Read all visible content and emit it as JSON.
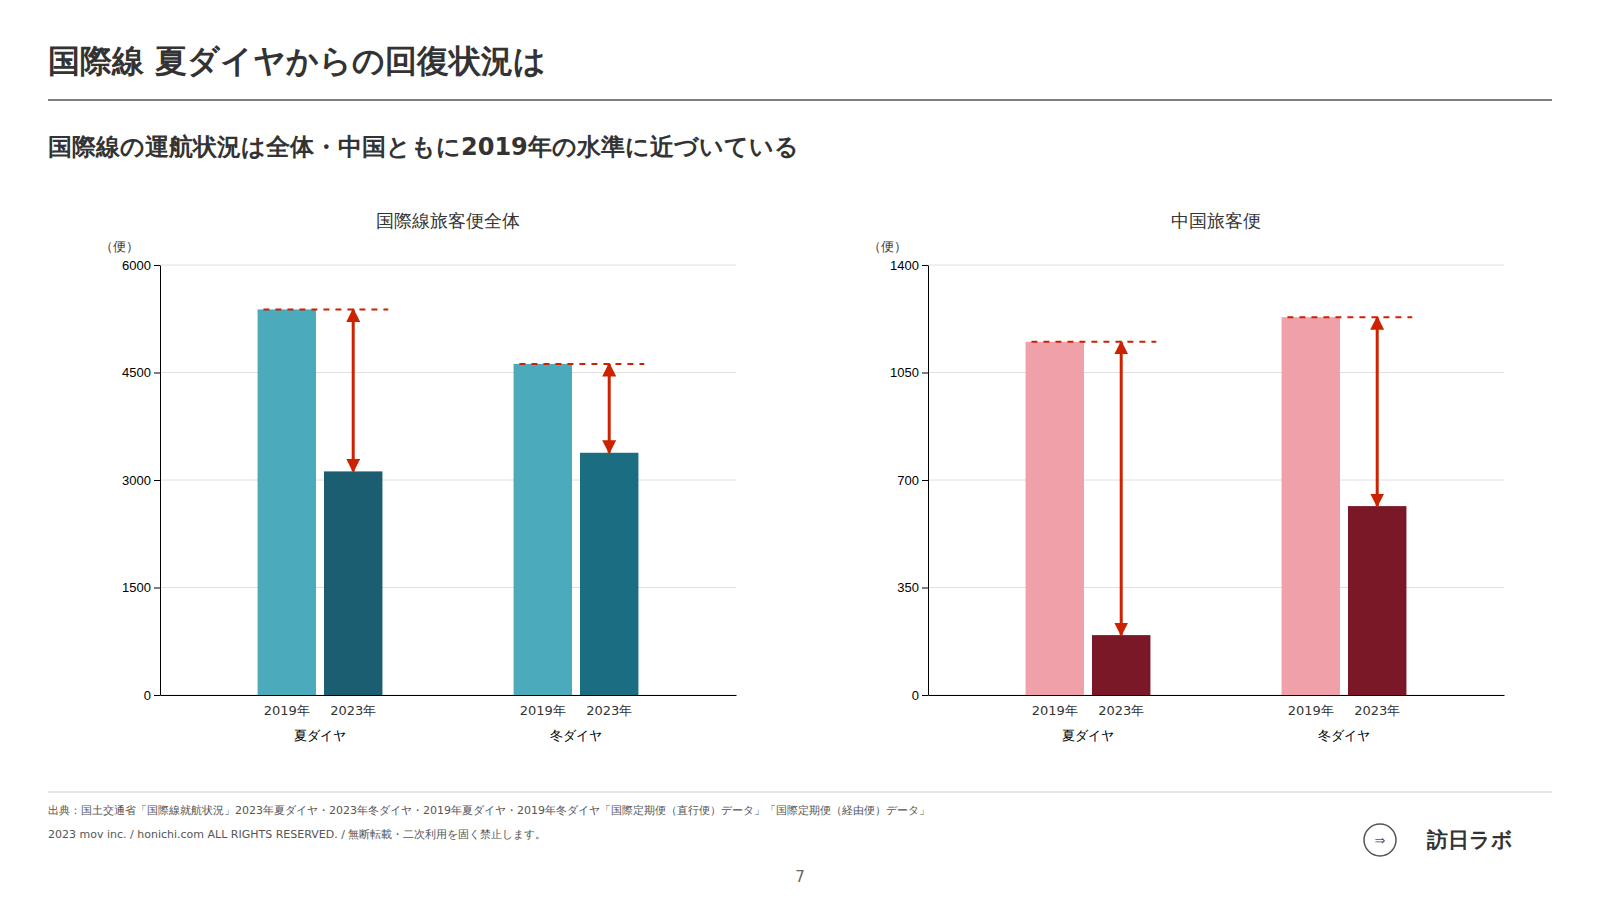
{
  "title": "国際線 夏ダイヤからの回復状況は",
  "subtitle": "国際線の運航状況は全体・中国ともに2019年の水準に近づいている",
  "annotations": [
    "出典：国土交通省「国際線就航状況」2023年夏ダイヤ・2023年冬ダイヤ・2019年夏ダイヤ・2019年冬ダイヤ「国際定期便（直行便）データ」「国際定期便（経由便）データ」",
    "2023 mov inc. / honichi.com ALL RIGHTS RESERVED. / 無断転載・二次利用を固く禁止します。",
    "7",
    "⇒",
    "訪日ラボ"
  ],
  "chart_data": [
    {
      "type": "bar",
      "title": "国際線旅客便全体",
      "ylabel": "（便）",
      "categories": [
        "夏ダイヤ",
        "冬ダイヤ"
      ],
      "series": [
        {
          "name": "2019年",
          "colors": [
            "#4BAABB",
            "#4BAABB"
          ],
          "values": [
            5380,
            4620
          ]
        },
        {
          "name": "2023年",
          "colors": [
            "#1B5E72",
            "#1B6E82"
          ],
          "values": [
            3120,
            3380
          ]
        }
      ],
      "ylim": [
        0,
        6000
      ],
      "yticks": [
        0,
        1500,
        3000,
        4500,
        6000
      ],
      "grid": true,
      "arrow": {
        "color": "#CC2200",
        "line_style": "dashed"
      }
    },
    {
      "type": "bar",
      "title": "中国旅客便",
      "ylabel": "（便）",
      "categories": [
        "夏ダイヤ",
        "冬ダイヤ"
      ],
      "series": [
        {
          "name": "2019年",
          "colors": [
            "#F0A0A8",
            "#F0A0A8"
          ],
          "values": [
            1150,
            1230
          ]
        },
        {
          "name": "2023年",
          "colors": [
            "#7A1828",
            "#7A1828"
          ],
          "values": [
            195,
            615
          ]
        }
      ],
      "ylim": [
        0,
        1400
      ],
      "yticks": [
        0,
        350,
        700,
        1050,
        1400
      ],
      "grid": true,
      "arrow": {
        "color": "#CC2200",
        "line_style": "dashed"
      }
    }
  ]
}
